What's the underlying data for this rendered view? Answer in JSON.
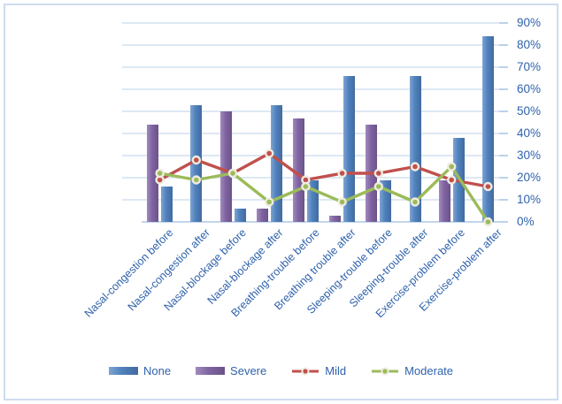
{
  "chart_data": {
    "type": "bar",
    "subtype": "clustered bars with overlaid lines",
    "title": "",
    "categories": [
      "Nasal-congestion before",
      "Nasal-congestion after",
      "Nasal-blockage before",
      "Nasal-blockage after",
      "Breathing-trouble before",
      "Breathing trouble after",
      "Sleeping-trouble before",
      "Sleeping-trouble after",
      "Exercise-problem before",
      "Exercise-problem after"
    ],
    "series": [
      {
        "name": "None",
        "type": "bar",
        "color": "#4F81BD",
        "values": [
          16,
          53,
          6,
          53,
          19,
          66,
          19,
          66,
          38,
          84
        ]
      },
      {
        "name": "Severe",
        "type": "bar",
        "color": "#8064A2",
        "values": [
          44,
          0,
          50,
          6,
          47,
          3,
          44,
          0,
          19,
          0
        ]
      },
      {
        "name": "Mild",
        "type": "line",
        "color": "#C0504D",
        "values": [
          19,
          28,
          22,
          31,
          19,
          22,
          22,
          25,
          19,
          16
        ]
      },
      {
        "name": "Moderate",
        "type": "line",
        "color": "#9BBB59",
        "values": [
          22,
          19,
          22,
          9,
          16,
          9,
          16,
          9,
          25,
          0
        ]
      }
    ],
    "bar_order_in_group": [
      "Severe",
      "None"
    ],
    "y_axis": {
      "position": "right",
      "min": 0,
      "max": 90,
      "step": 10,
      "unit": "%",
      "tick_labels_top_to_bottom": [
        "90%",
        "80%",
        "70%",
        "60%",
        "50%",
        "40%",
        "30%",
        "20%",
        "10%",
        "0%"
      ]
    },
    "x_axis": {
      "label_rotation_deg": 45
    },
    "grid": true,
    "legend": {
      "position": "bottom",
      "entries": [
        "None",
        "Severe",
        "Mild",
        "Moderate"
      ]
    }
  },
  "colors": {
    "bar_none": "#4F81BD",
    "bar_severe": "#8064A2",
    "line_mild": "#C0504D",
    "line_moderate": "#9BBB59",
    "marker_ring": "#EFEBE0",
    "gridline": "#DDE8F4",
    "axis_text": "#2F62AC",
    "chart_border": "#CFDCEE"
  }
}
